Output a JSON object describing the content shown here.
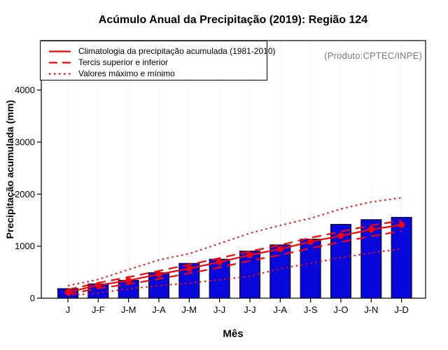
{
  "title": "Acúmulo Anual da Precipitação (2019): Região 124",
  "annotation": "(Produto:CPTEC/INPE)",
  "xlabel": "Mês",
  "ylabel": "Precipitação acumulada (mm)",
  "legend": {
    "items": [
      {
        "style": "solid",
        "label": "Climatologia da precipitação acumulada (1981-2010)"
      },
      {
        "style": "dashed",
        "label": "Tercis superior e inferior"
      },
      {
        "style": "dotted",
        "label": "Valores máximo e mínimo"
      }
    ]
  },
  "chart_data": {
    "type": "bar",
    "title": "Acúmulo Anual da Precipitação (2019): Região 124",
    "xlabel": "Mês",
    "ylabel": "Precipitação acumulada (mm)",
    "categories": [
      "J",
      "J-F",
      "J-M",
      "J-A",
      "J-M",
      "J-J",
      "J-J",
      "J-A",
      "J-S",
      "J-O",
      "J-N",
      "J-D"
    ],
    "bars": [
      185,
      275,
      345,
      490,
      670,
      750,
      905,
      1025,
      1135,
      1420,
      1510,
      1555
    ],
    "line_series": [
      {
        "name": "Climatologia da precipitação acumulada (1981-2010)",
        "style": "solid",
        "marker": true,
        "values": [
          115,
          250,
          340,
          460,
          570,
          695,
          830,
          945,
          1085,
          1200,
          1320,
          1410
        ]
      },
      {
        "name": "Tercil superior",
        "style": "dashed",
        "marker": false,
        "values": [
          165,
          295,
          405,
          525,
          645,
          770,
          900,
          1020,
          1160,
          1280,
          1400,
          1490
        ]
      },
      {
        "name": "Tercil inferior",
        "style": "dashed",
        "marker": false,
        "values": [
          75,
          190,
          270,
          370,
          480,
          590,
          720,
          830,
          960,
          1080,
          1190,
          1290
        ]
      },
      {
        "name": "Valor máximo",
        "style": "dotted",
        "marker": false,
        "values": [
          240,
          360,
          550,
          735,
          855,
          1050,
          1250,
          1400,
          1535,
          1715,
          1850,
          1930
        ]
      },
      {
        "name": "Valor mínimo",
        "style": "dotted",
        "marker": false,
        "values": [
          50,
          100,
          180,
          240,
          290,
          355,
          420,
          570,
          670,
          780,
          870,
          950
        ]
      }
    ],
    "yticks": [
      0,
      1000,
      2000,
      3000,
      4000
    ],
    "ylim": [
      0,
      4950
    ],
    "grid": "vertical-dotted",
    "legend_position": "topleft",
    "colors": {
      "bar": "#0808dc",
      "bar_border": "#000000",
      "line": "#ff0000",
      "grid": "#d5d5d5",
      "axis": "#000000",
      "annotation": "#7a7a7a"
    }
  }
}
